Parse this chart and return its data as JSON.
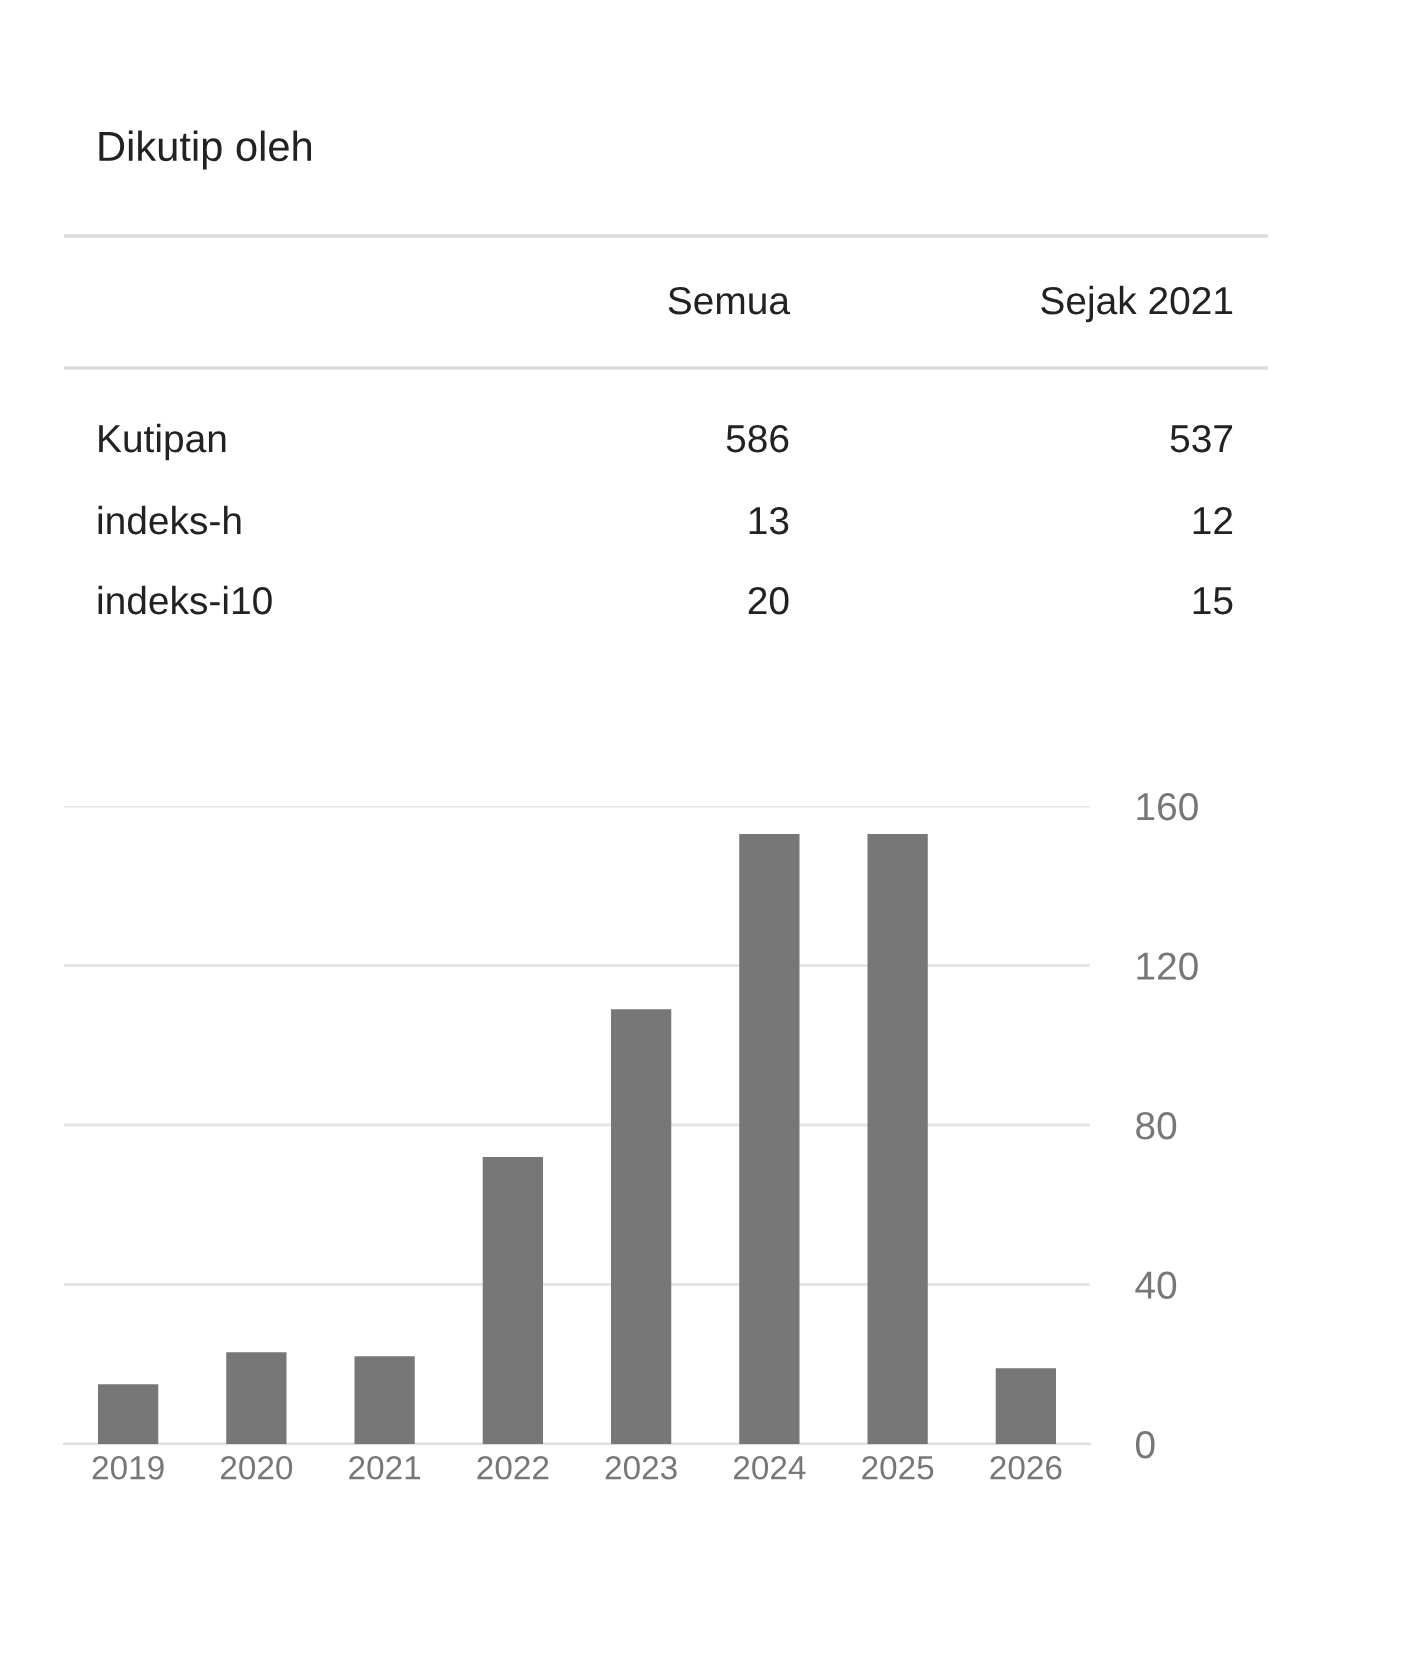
{
  "chart_data": [
    {
      "type": "other",
      "title": "Dikutip oleh",
      "categories": [
        "Semua",
        "Sejak 2021"
      ],
      "y_categories": [
        "Kutipan",
        "indeks-h",
        "indeks-i10"
      ],
      "cell_labels": [
        [
          "586",
          "537"
        ],
        [
          "13",
          "12"
        ],
        [
          "20",
          "15"
        ]
      ]
    },
    {
      "type": "bar",
      "categories": [
        "2019",
        "2020",
        "2021",
        "2022",
        "2023",
        "2024",
        "2025",
        "2026"
      ],
      "values": [
        15,
        23,
        22,
        72,
        109,
        153,
        153,
        19
      ],
      "color": "#777777",
      "ylim": [
        0,
        160
      ],
      "yticks": [
        0,
        40,
        80,
        120,
        160
      ],
      "grid": "y"
    }
  ]
}
